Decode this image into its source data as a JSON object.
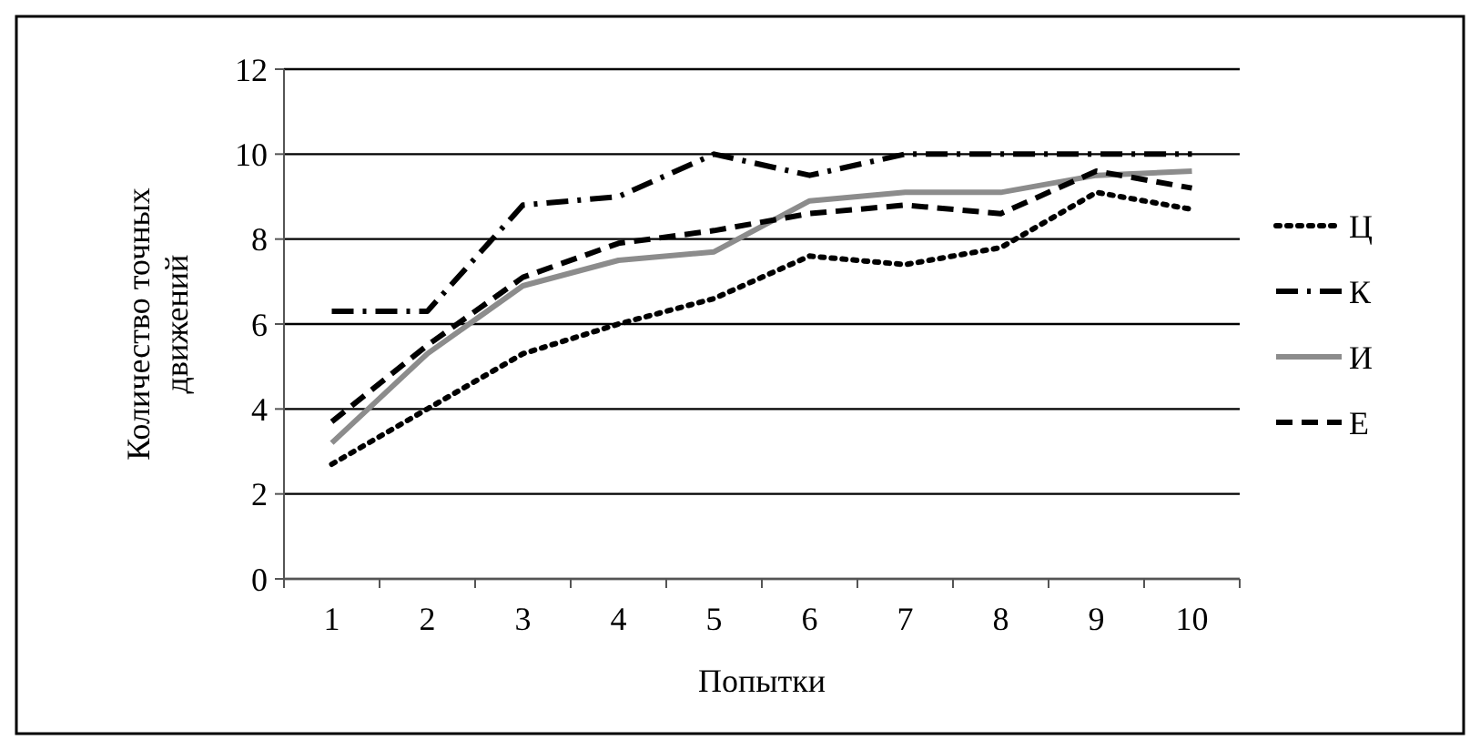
{
  "chart_data": {
    "type": "line",
    "xlabel": "Попытки",
    "ylabel": "Количество точных движений",
    "categories": [
      "1",
      "2",
      "3",
      "4",
      "5",
      "6",
      "7",
      "8",
      "9",
      "10"
    ],
    "ylim": [
      0,
      12
    ],
    "yticks": [
      0,
      2,
      4,
      6,
      8,
      10,
      12
    ],
    "grid": "y",
    "legend": "right",
    "marker": "none",
    "series": [
      {
        "name": "Ц",
        "color": "#000000",
        "line_style": "dotted",
        "values": [
          2.7,
          4.0,
          5.3,
          6.0,
          6.6,
          7.6,
          7.4,
          7.8,
          9.1,
          8.7
        ]
      },
      {
        "name": "К",
        "color": "#000000",
        "line_style": "dashdot",
        "values": [
          6.3,
          6.3,
          8.8,
          9.0,
          10.0,
          9.5,
          10.0,
          10.0,
          10.0,
          10.0
        ]
      },
      {
        "name": "И",
        "color": "#8c8c8c",
        "line_style": "solid",
        "values": [
          3.2,
          5.3,
          6.9,
          7.5,
          7.7,
          8.9,
          9.1,
          9.1,
          9.5,
          9.6
        ]
      },
      {
        "name": "Е",
        "color": "#000000",
        "line_style": "dashed",
        "values": [
          3.7,
          5.5,
          7.1,
          7.9,
          8.2,
          8.6,
          8.8,
          8.6,
          9.6,
          9.2
        ]
      }
    ]
  }
}
